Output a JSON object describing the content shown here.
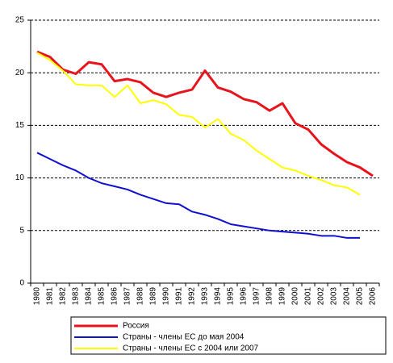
{
  "chart_data": {
    "type": "line",
    "categories": [
      "1980",
      "1981",
      "1982",
      "1983",
      "1984",
      "1985",
      "1986",
      "1987",
      "1988",
      "1989",
      "1990",
      "1991",
      "1992",
      "1993",
      "1994",
      "1995",
      "1996",
      "1997",
      "1998",
      "1999",
      "2000",
      "2001",
      "2002",
      "2003",
      "2004",
      "2005",
      "2006"
    ],
    "series": [
      {
        "name": "Россия",
        "color": "#e8141c",
        "values": [
          22.0,
          21.5,
          20.3,
          19.9,
          21.0,
          20.8,
          19.2,
          19.4,
          19.1,
          18.1,
          17.7,
          18.1,
          18.4,
          20.2,
          18.6,
          18.2,
          17.5,
          17.2,
          16.4,
          17.1,
          15.2,
          14.6,
          13.2,
          12.3,
          11.5,
          11.0,
          10.2
        ]
      },
      {
        "name": "Страны - члены ЕС до мая 2004",
        "color": "#1010d0",
        "values": [
          12.4,
          11.8,
          11.2,
          10.7,
          10.0,
          9.5,
          9.2,
          8.9,
          8.4,
          8.0,
          7.6,
          7.5,
          6.8,
          6.5,
          6.1,
          5.6,
          5.4,
          5.2,
          5.0,
          4.9,
          4.8,
          4.7,
          4.5,
          4.5,
          4.3,
          4.3,
          null
        ]
      },
      {
        "name": "Страны - члены ЕС с 2004 или 2007",
        "color": "#ffff00",
        "values": [
          21.9,
          21.2,
          20.2,
          18.9,
          18.8,
          18.8,
          17.7,
          18.8,
          17.1,
          17.4,
          17.0,
          16.0,
          15.8,
          14.8,
          15.6,
          14.2,
          13.6,
          12.6,
          11.8,
          11.0,
          10.7,
          10.2,
          9.8,
          9.3,
          9.1,
          8.4,
          null
        ]
      }
    ],
    "ylim": [
      0,
      25
    ],
    "yticks": [
      0,
      5,
      10,
      15,
      20,
      25
    ],
    "grid": true,
    "legend": "bottom"
  }
}
